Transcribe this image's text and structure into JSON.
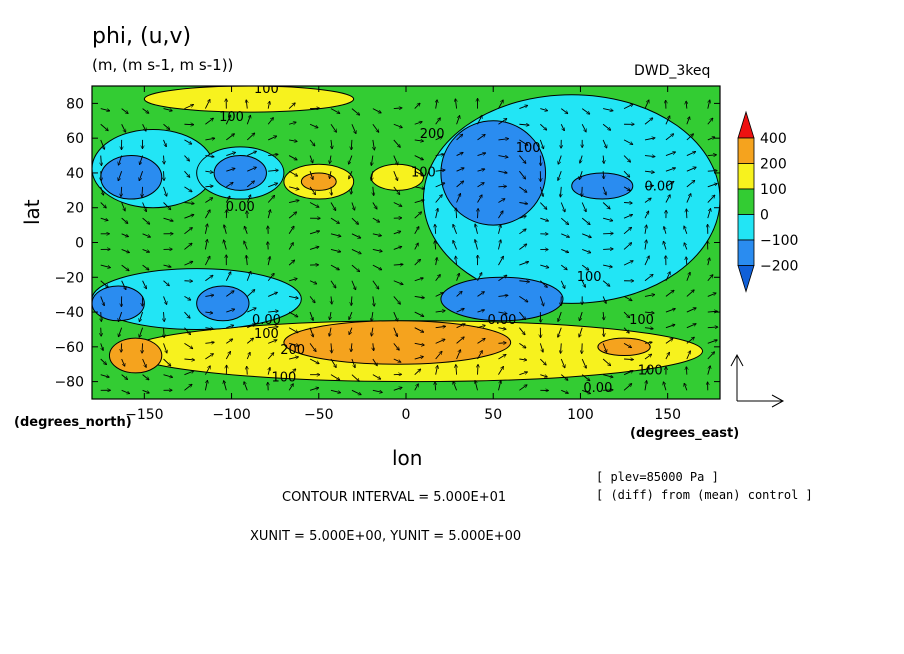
{
  "chart_data": {
    "type": "heatmap",
    "title": "phi, (u,v)",
    "units": "(m, (m s-1, m s-1))",
    "dataset": "DWD_3keq",
    "xlabel": "lon",
    "ylabel": "lat",
    "x_unit_label": "(degrees_east)",
    "y_unit_label": "(degrees_north)",
    "xlim": [
      -180,
      180
    ],
    "ylim": [
      -90,
      90
    ],
    "x_ticks": [
      -150,
      -100,
      -50,
      0,
      50,
      100,
      150
    ],
    "y_ticks": [
      80,
      60,
      40,
      20,
      0,
      -20,
      -40,
      -60,
      -80
    ],
    "colorbar": {
      "labels": [
        "400",
        "200",
        "100",
        "0",
        "-100",
        "-200"
      ],
      "colors": [
        "#ee1111",
        "#f5a31e",
        "#f7f21e",
        "#33cc33",
        "#22e5f5",
        "#2a8cf0",
        "#1060d8"
      ]
    },
    "regions": [
      {
        "level": "positive-100",
        "lon": [
          -150,
          -30
        ],
        "lat": [
          75,
          90
        ]
      },
      {
        "level": "positive-100",
        "lon": [
          -70,
          -30
        ],
        "lat": [
          25,
          45
        ]
      },
      {
        "level": "positive-200",
        "lon": [
          -60,
          -40
        ],
        "lat": [
          30,
          40
        ]
      },
      {
        "level": "positive-100",
        "lon": [
          -20,
          10
        ],
        "lat": [
          30,
          45
        ]
      },
      {
        "level": "positive-100",
        "lon": [
          -160,
          170
        ],
        "lat": [
          -80,
          -45
        ]
      },
      {
        "level": "positive-200",
        "lon": [
          -170,
          -140
        ],
        "lat": [
          -75,
          -55
        ]
      },
      {
        "level": "positive-200",
        "lon": [
          -70,
          60
        ],
        "lat": [
          -70,
          -45
        ]
      },
      {
        "level": "positive-200",
        "lon": [
          110,
          140
        ],
        "lat": [
          -65,
          -55
        ]
      },
      {
        "level": "negative-100",
        "lon": [
          -180,
          -110
        ],
        "lat": [
          20,
          65
        ]
      },
      {
        "level": "negative-200",
        "lon": [
          -175,
          -140
        ],
        "lat": [
          25,
          50
        ]
      },
      {
        "level": "negative-100",
        "lon": [
          -120,
          -70
        ],
        "lat": [
          25,
          55
        ]
      },
      {
        "level": "negative-200",
        "lon": [
          -110,
          -80
        ],
        "lat": [
          30,
          50
        ]
      },
      {
        "level": "negative-100",
        "lon": [
          10,
          180
        ],
        "lat": [
          -35,
          85
        ]
      },
      {
        "level": "negative-200",
        "lon": [
          20,
          80
        ],
        "lat": [
          10,
          70
        ]
      },
      {
        "level": "negative-100",
        "lon": [
          -180,
          -60
        ],
        "lat": [
          -50,
          -15
        ]
      },
      {
        "level": "negative-200",
        "lon": [
          -180,
          -150
        ],
        "lat": [
          -45,
          -25
        ]
      },
      {
        "level": "negative-200",
        "lon": [
          -120,
          -90
        ],
        "lat": [
          -45,
          -25
        ]
      },
      {
        "level": "negative-200",
        "lon": [
          20,
          90
        ],
        "lat": [
          -45,
          -20
        ]
      },
      {
        "level": "negative-200",
        "lon": [
          95,
          130
        ],
        "lat": [
          25,
          40
        ]
      }
    ],
    "contour_labels": [
      {
        "text": "100",
        "lon": -80,
        "lat": 86
      },
      {
        "text": "100",
        "lon": -100,
        "lat": 70
      },
      {
        "text": "0.00",
        "lon": -95,
        "lat": 18
      },
      {
        "text": "200",
        "lon": 15,
        "lat": 60
      },
      {
        "text": "100",
        "lon": 10,
        "lat": 38
      },
      {
        "text": "100",
        "lon": 70,
        "lat": 52
      },
      {
        "text": "0.00",
        "lon": 145,
        "lat": 30
      },
      {
        "text": "100",
        "lon": 105,
        "lat": -22
      },
      {
        "text": "0.00",
        "lon": 55,
        "lat": -47
      },
      {
        "text": "100",
        "lon": 135,
        "lat": -47
      },
      {
        "text": "0.00",
        "lon": -80,
        "lat": -47
      },
      {
        "text": "100",
        "lon": -80,
        "lat": -55
      },
      {
        "text": "200",
        "lon": -65,
        "lat": -64
      },
      {
        "text": "100",
        "lon": -70,
        "lat": -80
      },
      {
        "text": "100",
        "lon": 140,
        "lat": -76
      },
      {
        "text": "0.00",
        "lon": 110,
        "lat": -86
      }
    ],
    "vector_reference": {
      "xunit": 5.0,
      "yunit": 5.0
    }
  },
  "annotations": {
    "plev": "[ plev=85000 Pa ]",
    "diff": "[ (diff) from (mean) control ]",
    "contour_interval": "CONTOUR INTERVAL = 5.000E+01",
    "vector_units": "XUNIT = 5.000E+00, YUNIT = 5.000E+00"
  }
}
